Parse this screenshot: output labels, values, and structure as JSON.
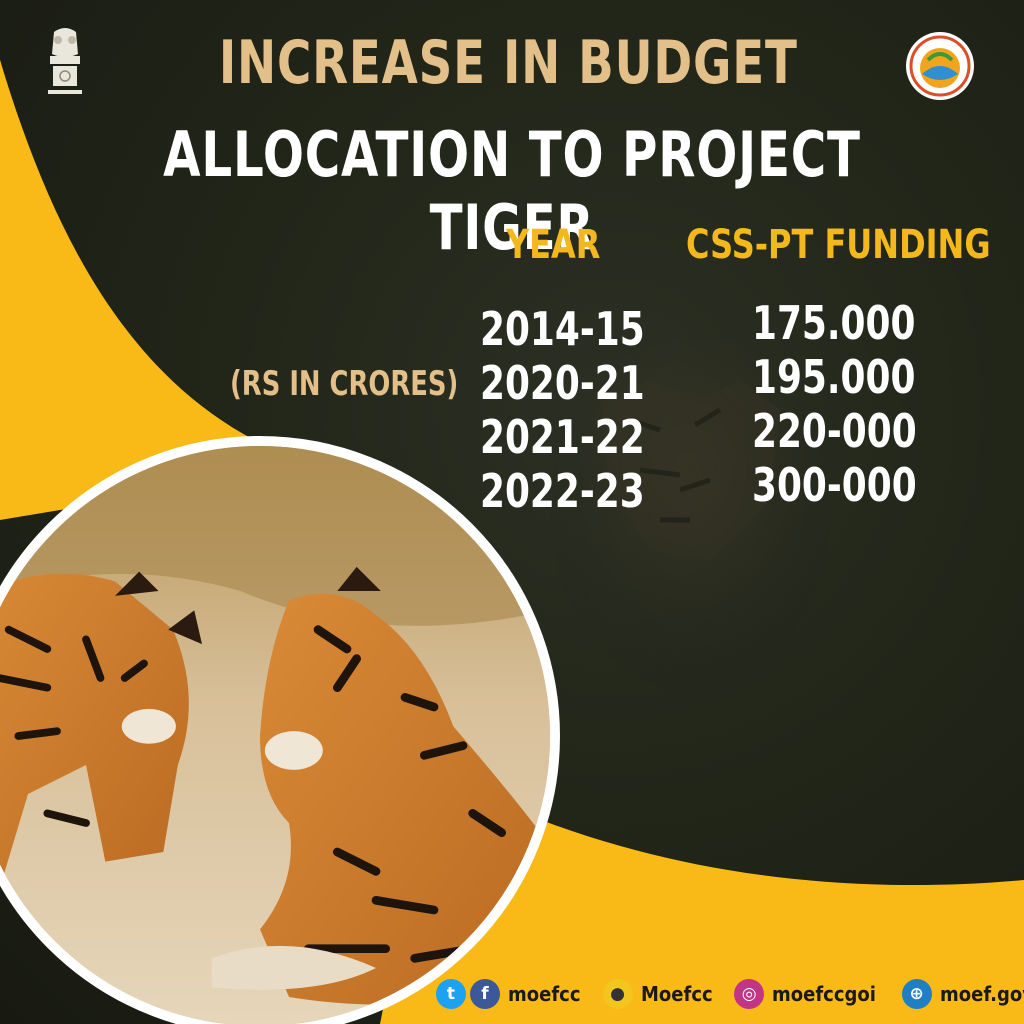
{
  "title": {
    "line1": "INCREASE IN BUDGET",
    "line2": "ALLOCATION TO PROJECT TIGER"
  },
  "table": {
    "headers": {
      "year": "YEAR",
      "funding": "CSS-PT FUNDING"
    },
    "note": "(RS IN CRORES)",
    "rows": [
      {
        "year": "2014-15",
        "funding": "175.000"
      },
      {
        "year": "2020-21",
        "funding": "195.000"
      },
      {
        "year": "2021-22",
        "funding": "220-000"
      },
      {
        "year": "2022-23",
        "funding": "300-000"
      }
    ]
  },
  "social": {
    "twitter_facebook_handle": "moefcc",
    "koo_handle": "Moefcc",
    "instagram_handle": "moefccgoi",
    "website": "moef.gov.in"
  },
  "icons": {
    "emblem": "national-emblem-icon",
    "logo": "moefcc-logo-icon",
    "twitter": "twitter-icon",
    "facebook": "facebook-icon",
    "koo": "koo-icon",
    "instagram": "instagram-icon",
    "web": "globe-icon"
  },
  "colors": {
    "accent_yellow": "#f9b916",
    "title_gold": "#e3c08a",
    "header_yellow": "#f3b81c",
    "background_dark": "#1e2118",
    "twitter": "#1da1f2",
    "facebook": "#3b5998",
    "instagram": "#c13584",
    "web": "#1f7fc4"
  }
}
